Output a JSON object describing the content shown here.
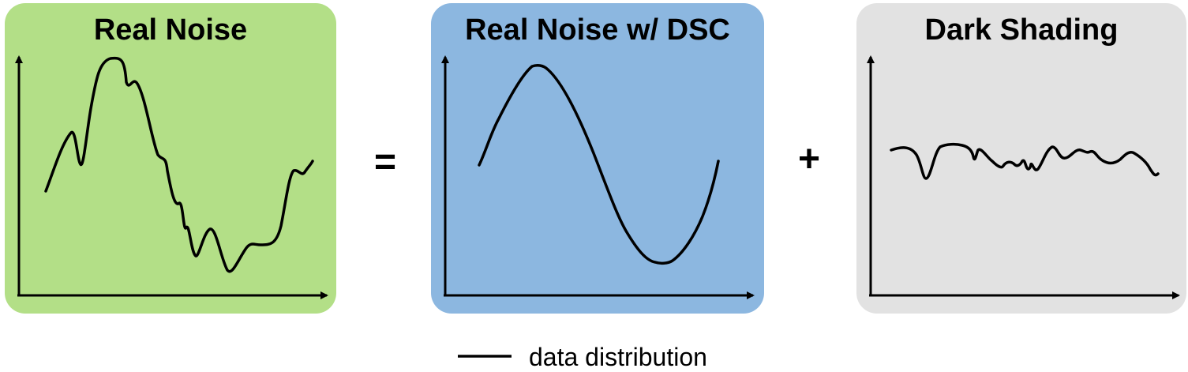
{
  "panels": [
    {
      "title": "Real Noise",
      "background": "#b3df87",
      "curve_shape": "sine-with-noise"
    },
    {
      "title": "Real Noise w/ DSC",
      "background": "#8cb7e0",
      "curve_shape": "smooth-sine"
    },
    {
      "title": "Dark Shading",
      "background": "#e2e2e2",
      "curve_shape": "small-noisy-flat"
    }
  ],
  "operators": {
    "equals": "=",
    "plus": "+"
  },
  "legend": {
    "label": "data distribution",
    "line_color": "#000000"
  },
  "colors": {
    "curve": "#000000",
    "axis": "#000000"
  }
}
